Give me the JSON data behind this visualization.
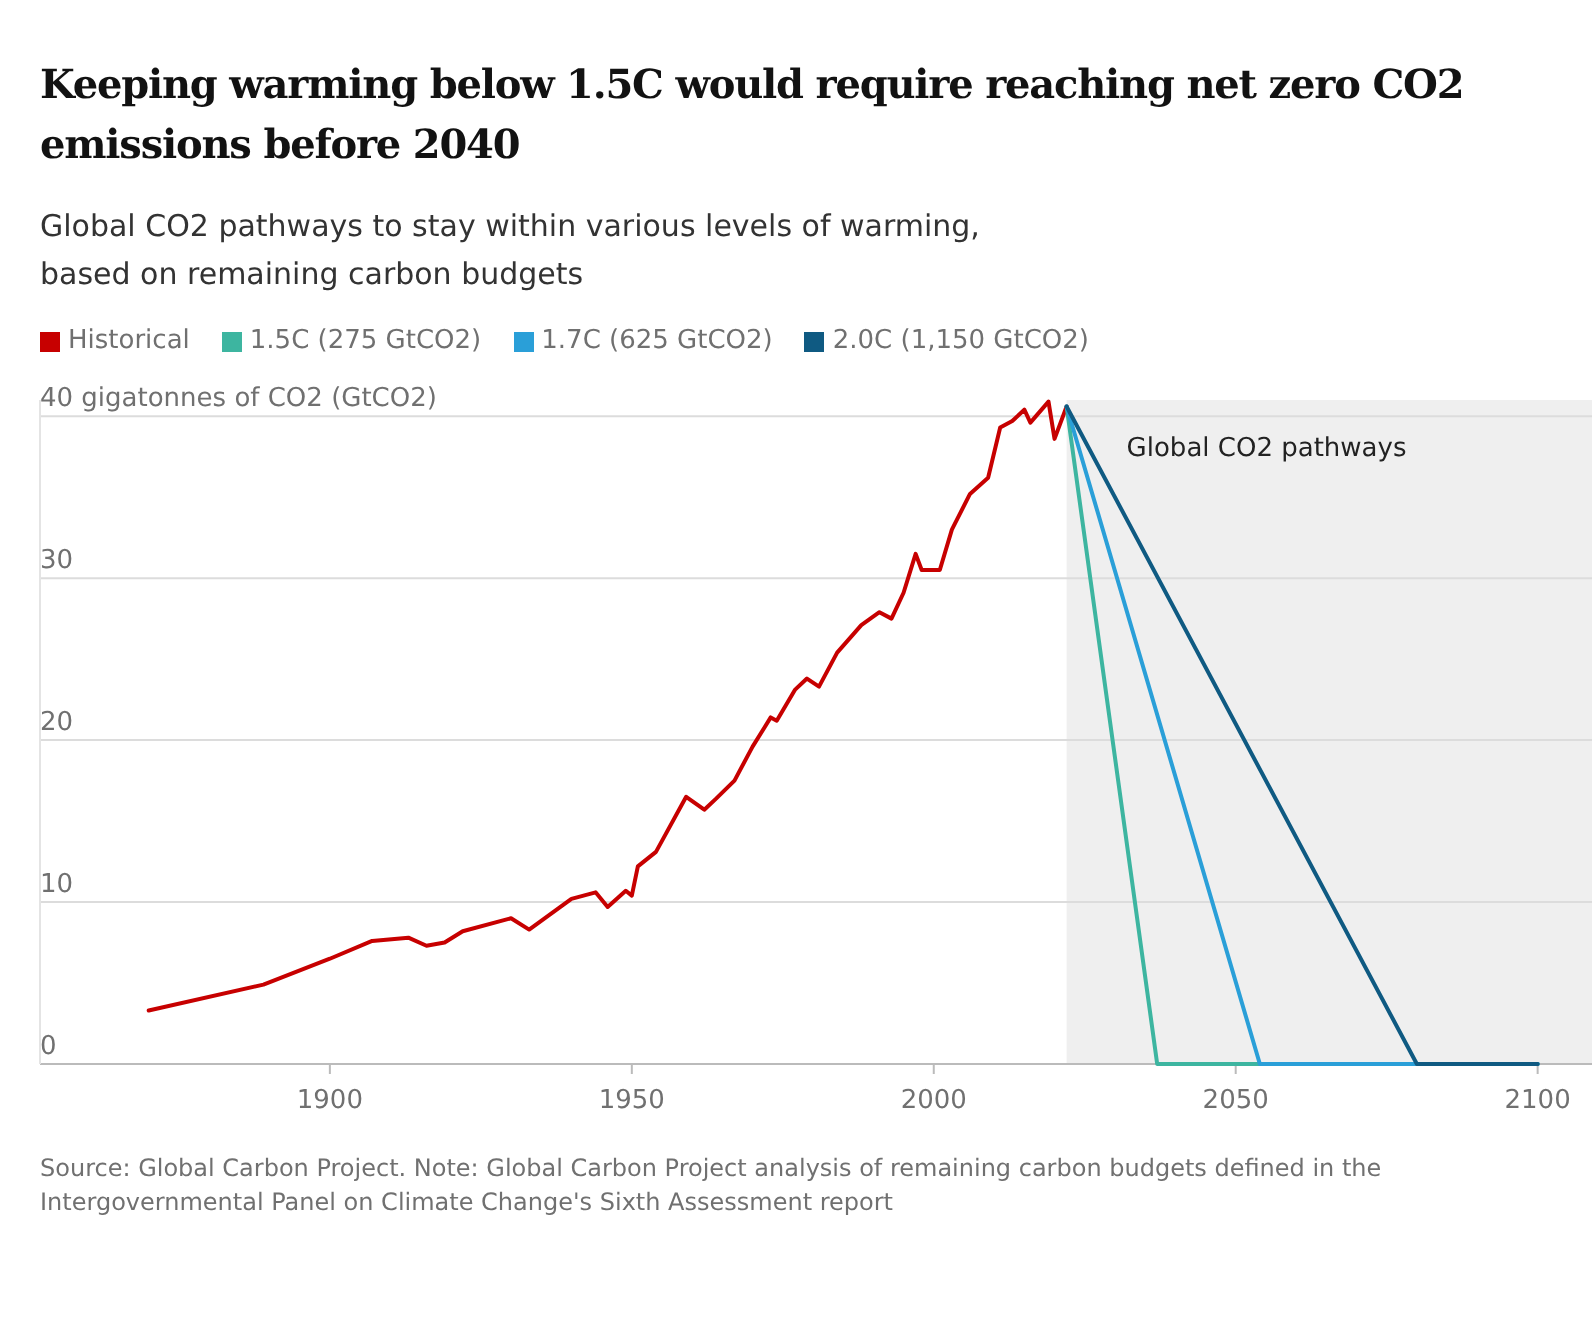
{
  "chart_data": {
    "type": "line",
    "title": "Keeping warming below 1.5C would require reaching net zero CO2 emissions before 2040",
    "subtitle": "Global CO2 pathways to stay within various levels of warming, based on remaining carbon budgets",
    "xlim": [
      1852,
      2109
    ],
    "xticks": [
      1900,
      1950,
      2000,
      2050,
      2100
    ],
    "ylim": [
      0,
      41
    ],
    "yticks": [
      0,
      10,
      20,
      30,
      {
        "value": 40,
        "label": "40 gigatonnes of CO2 (GtCO2)"
      }
    ],
    "grid": "y",
    "legend": "top left",
    "bands": [
      {
        "axis": "x",
        "from": 2022,
        "to": 2109,
        "label": "Global CO2 pathways",
        "color": "#efefef"
      }
    ],
    "series": [
      {
        "name": "Historical",
        "color": "#c70000",
        "x": [
          1870,
          1889,
          1900,
          1907,
          1913,
          1916,
          1919,
          1922,
          1930,
          1933,
          1940,
          1944,
          1946,
          1949,
          1950,
          1951,
          1954,
          1959,
          1962,
          1964,
          1967,
          1970,
          1973,
          1974,
          1977,
          1979,
          1981,
          1984,
          1988,
          1991,
          1993,
          1995,
          1997,
          1998,
          2001,
          2003,
          2006,
          2009,
          2011,
          2013,
          2015,
          2016,
          2019,
          2020,
          2022
        ],
        "values": [
          3.3,
          4.9,
          6.5,
          7.6,
          7.8,
          7.3,
          7.5,
          8.2,
          9.0,
          8.3,
          10.2,
          10.6,
          9.7,
          10.7,
          10.4,
          12.2,
          13.1,
          16.5,
          15.7,
          16.4,
          17.5,
          19.6,
          21.4,
          21.2,
          23.1,
          23.8,
          23.3,
          25.4,
          27.1,
          27.9,
          27.5,
          29.1,
          31.5,
          30.5,
          30.5,
          33.0,
          35.2,
          36.2,
          39.3,
          39.7,
          40.4,
          39.6,
          40.9,
          38.6,
          40.6
        ]
      },
      {
        "name": "1.5C (275 GtCO2)",
        "color": "#3db5a0",
        "x": [
          2022,
          2037,
          2100
        ],
        "values": [
          40.6,
          0,
          0
        ]
      },
      {
        "name": "1.7C (625 GtCO2)",
        "color": "#2a9fd8",
        "x": [
          2022,
          2054,
          2100
        ],
        "values": [
          40.6,
          0,
          0
        ]
      },
      {
        "name": "2.0C (1,150 GtCO2)",
        "color": "#0f5a82",
        "x": [
          2022,
          2080,
          2100
        ],
        "values": [
          40.6,
          0,
          0
        ]
      }
    ],
    "annotations": [
      "Source: Global Carbon Project. Note: Global Carbon Project analysis of remaining carbon budgets defined in the Intergovernmental Panel on Climate Change's Sixth Assessment report"
    ]
  }
}
